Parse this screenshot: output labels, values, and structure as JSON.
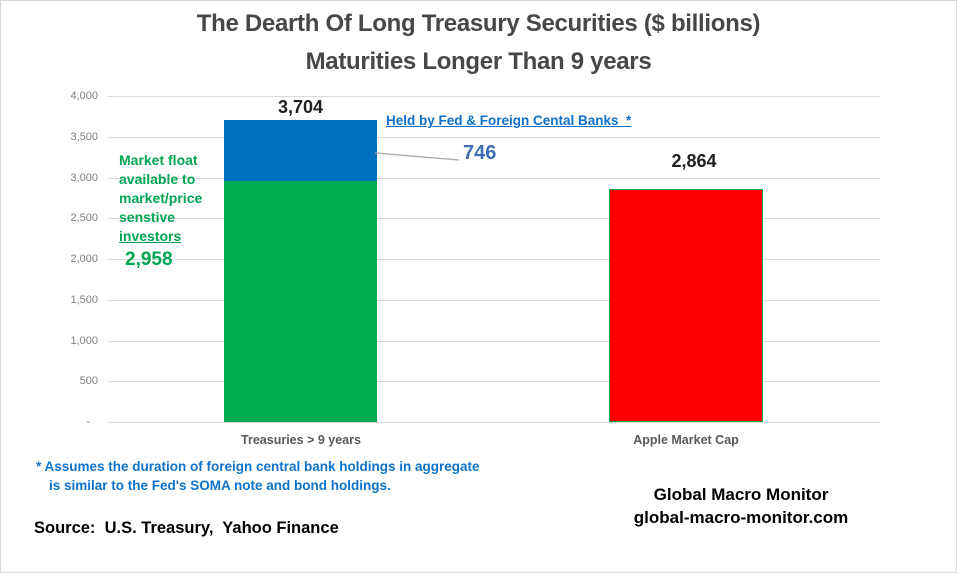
{
  "title": {
    "line1": "The Dearth Of Long Treasury Securities ($ billions)",
    "line2": "Maturities Longer Than 9 years"
  },
  "chart_data": {
    "type": "bar",
    "subtype": "stacked",
    "title": "The Dearth Of Long Treasury Securities ($ billions) Maturities Longer Than 9 years",
    "categories": [
      "Treasuries > 9 years",
      "Apple Market Cap"
    ],
    "ylim": [
      0,
      4000
    ],
    "grid": "horizontal",
    "legend": "none",
    "y_ticks": [
      {
        "value": 4000,
        "label": "4,000"
      },
      {
        "value": 3500,
        "label": "3,500"
      },
      {
        "value": 3000,
        "label": "3,000"
      },
      {
        "value": 2500,
        "label": "2,500"
      },
      {
        "value": 2000,
        "label": "2,000"
      },
      {
        "value": 1500,
        "label": "1,500"
      },
      {
        "value": 1000,
        "label": "1,000"
      },
      {
        "value": 500,
        "label": "500"
      },
      {
        "value": 0,
        "label": "-"
      }
    ],
    "bars": [
      {
        "category": "Treasuries > 9 years",
        "total": 3704,
        "total_label": "3,704",
        "segments": [
          {
            "name": "Market float available to market/price senstive investors",
            "value": 2958,
            "label": "2,958",
            "color": "#00AC50"
          },
          {
            "name": "Held by Fed & Foreign Cental Banks *",
            "value": 746,
            "label": "746",
            "color": "#0070C0"
          }
        ]
      },
      {
        "category": "Apple Market Cap",
        "total": 2864,
        "total_label": "2,864",
        "segments": [
          {
            "name": "Apple Market Cap",
            "value": 2864,
            "label": "2,864",
            "color": "#FF0000",
            "border_color": "#00A651"
          }
        ]
      }
    ]
  },
  "annotations": {
    "market_float": {
      "lines": [
        "Market float",
        "available to",
        "market/price",
        "senstive",
        "investors"
      ],
      "value_label": "2,958"
    },
    "held_by": {
      "label": "Held by Fed & Foreign Cental Banks  *",
      "value_label": "746"
    }
  },
  "footnote": {
    "line1": "* Assumes the duration of foreign central bank holdings in aggregate",
    "line2": "is similar to the Fed's SOMA note and bond holdings."
  },
  "source": "Source:  U.S. Treasury,  Yahoo Finance",
  "branding": {
    "line1": "Global Macro Monitor",
    "line2": "global-macro-monitor.com"
  },
  "colors": {
    "bar_blue": "#0070C0",
    "bar_green": "#00AC50",
    "bar_red": "#FF0000",
    "red_bar_border": "#00A651",
    "green_text": "#00A551",
    "blue_text": "#0E72C8",
    "value_746_text": "#3E6DB5",
    "title_text": "#474747",
    "axis_text": "#7F7F7F",
    "category_text": "#595959",
    "gridline": "#D9D9D9",
    "leader_line": "#A6A6A6"
  }
}
